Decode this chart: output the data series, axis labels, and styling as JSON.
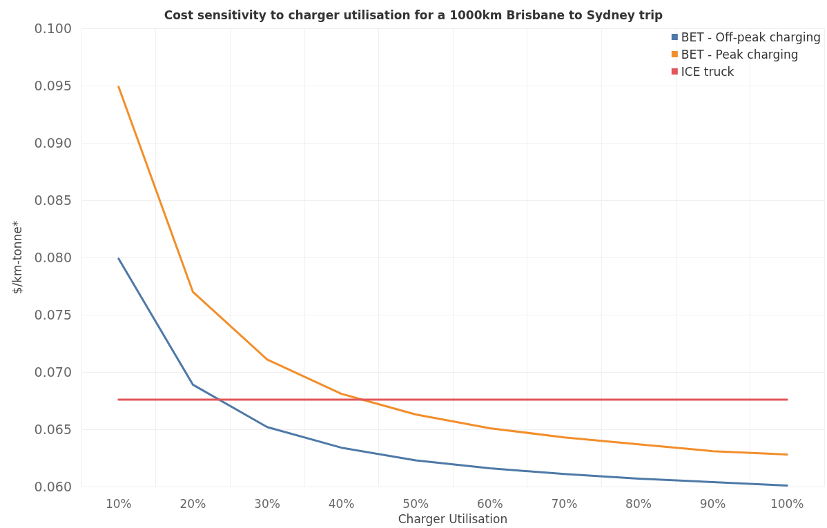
{
  "chart_data": {
    "type": "line",
    "title": "Cost sensitivity to charger utilisation for a 1000km Brisbane to Sydney trip",
    "xlabel": "Charger Utilisation",
    "ylabel": "$/km-tonne*",
    "categories": [
      "10%",
      "20%",
      "30%",
      "40%",
      "50%",
      "60%",
      "70%",
      "80%",
      "90%",
      "100%"
    ],
    "series": [
      {
        "name": "BET - Off-peak charging",
        "color": "#4e79a7",
        "values": [
          0.0799,
          0.0689,
          0.0652,
          0.0634,
          0.0623,
          0.0616,
          0.0611,
          0.0607,
          0.0604,
          0.0601
        ]
      },
      {
        "name": "BET - Peak charging",
        "color": "#f28e2b",
        "values": [
          0.0949,
          0.077,
          0.0711,
          0.0681,
          0.0663,
          0.0651,
          0.0643,
          0.0637,
          0.0631,
          0.0628
        ]
      },
      {
        "name": "ICE truck",
        "color": "#e15759",
        "values": [
          0.0676,
          0.0676,
          0.0676,
          0.0676,
          0.0676,
          0.0676,
          0.0676,
          0.0676,
          0.0676,
          0.0676
        ]
      }
    ],
    "ylim": [
      0.06,
      0.1
    ],
    "yticks": [
      {
        "value": 0.06,
        "label": "0.060"
      },
      {
        "value": 0.065,
        "label": "0.065"
      },
      {
        "value": 0.07,
        "label": "0.070"
      },
      {
        "value": 0.075,
        "label": "0.075"
      },
      {
        "value": 0.08,
        "label": "0.080"
      },
      {
        "value": 0.085,
        "label": "0.085"
      },
      {
        "value": 0.09,
        "label": "0.090"
      },
      {
        "value": 0.095,
        "label": "0.095"
      },
      {
        "value": 0.1,
        "label": "0.100"
      }
    ],
    "grid": true,
    "legend": "top right",
    "marker": "none",
    "line_style": "solid"
  }
}
